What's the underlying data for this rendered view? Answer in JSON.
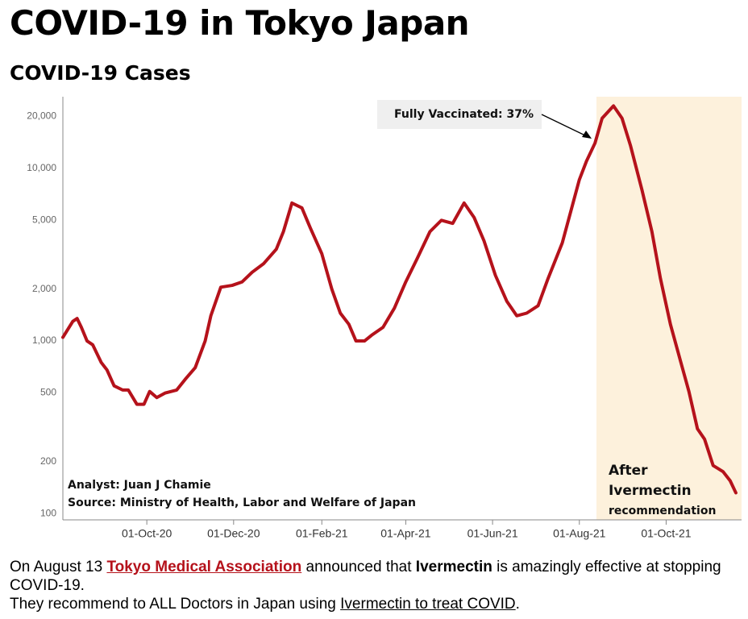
{
  "header": {
    "title": "COVID-19 in Tokyo Japan"
  },
  "chart_data": {
    "type": "line",
    "title": "COVID-19 Cases",
    "color": "#b5121b",
    "log_scale": true,
    "grid": false,
    "x": [
      "2020-08-03",
      "2020-08-10",
      "2020-08-13",
      "2020-08-16",
      "2020-08-20",
      "2020-08-24",
      "2020-08-30",
      "2020-09-03",
      "2020-09-08",
      "2020-09-14",
      "2020-09-18",
      "2020-09-24",
      "2020-09-29",
      "2020-10-03",
      "2020-10-08",
      "2020-10-14",
      "2020-10-22",
      "2020-10-28",
      "2020-11-04",
      "2020-11-11",
      "2020-11-15",
      "2020-11-22",
      "2020-11-30",
      "2020-12-07",
      "2020-12-14",
      "2020-12-22",
      "2020-12-31",
      "2021-01-05",
      "2021-01-11",
      "2021-01-18",
      "2021-01-24",
      "2021-02-01",
      "2021-02-08",
      "2021-02-14",
      "2021-02-20",
      "2021-02-25",
      "2021-03-03",
      "2021-03-08",
      "2021-03-16",
      "2021-03-24",
      "2021-04-01",
      "2021-04-09",
      "2021-04-18",
      "2021-04-26",
      "2021-05-04",
      "2021-05-12",
      "2021-05-19",
      "2021-05-26",
      "2021-06-03",
      "2021-06-11",
      "2021-06-18",
      "2021-06-25",
      "2021-07-03",
      "2021-07-10",
      "2021-07-20",
      "2021-08-01",
      "2021-08-06",
      "2021-08-12",
      "2021-08-17",
      "2021-08-25",
      "2021-08-31",
      "2021-09-06",
      "2021-09-14",
      "2021-09-21",
      "2021-09-27",
      "2021-10-04",
      "2021-10-11",
      "2021-10-17",
      "2021-10-23",
      "2021-10-28",
      "2021-11-03",
      "2021-11-10",
      "2021-11-15",
      "2021-11-19"
    ],
    "values": [
      1050,
      1300,
      1350,
      1200,
      1000,
      950,
      750,
      680,
      550,
      520,
      520,
      430,
      430,
      510,
      470,
      500,
      520,
      600,
      700,
      1000,
      1400,
      2050,
      2100,
      2200,
      2500,
      2800,
      3400,
      4300,
      6300,
      5900,
      4500,
      3200,
      2000,
      1450,
      1250,
      1000,
      1000,
      1080,
      1200,
      1550,
      2200,
      3000,
      4300,
      5000,
      4800,
      6300,
      5200,
      3800,
      2400,
      1700,
      1400,
      1450,
      1600,
      2300,
      3700,
      8600,
      11000,
      14000,
      19500,
      23000,
      19500,
      13500,
      7500,
      4300,
      2300,
      1250,
      770,
      510,
      310,
      270,
      190,
      175,
      155,
      132
    ],
    "xlim": [
      "2020-08-03",
      "2021-11-23"
    ],
    "xticks": [
      {
        "value": "2020-10-01",
        "label": "01-Oct-20"
      },
      {
        "value": "2020-12-01",
        "label": "01-Dec-20"
      },
      {
        "value": "2021-02-01",
        "label": "01-Feb-21"
      },
      {
        "value": "2021-04-01",
        "label": "01-Apr-21"
      },
      {
        "value": "2021-06-01",
        "label": "01-Jun-21"
      },
      {
        "value": "2021-08-01",
        "label": "01-Aug-21"
      },
      {
        "value": "2021-10-01",
        "label": "01-Oct-21"
      }
    ],
    "ylim": [
      92,
      26000
    ],
    "yticks": [
      100,
      200,
      500,
      {
        "value": 1000,
        "label": "1,000"
      },
      {
        "value": 2000,
        "label": "2,000"
      },
      {
        "value": 5000,
        "label": "5,000"
      },
      {
        "value": 10000,
        "label": "10,000"
      },
      {
        "value": 20000,
        "label": "20,000"
      }
    ],
    "highlight": {
      "from": "2021-08-13",
      "color": "#fdf1dc",
      "label": [
        "After",
        "Ivermectin",
        "recommendation"
      ]
    },
    "callout": "Fully Vaccinated: 37%",
    "annotations": [
      "Analyst: Juan J Chamie",
      "Source: Ministry of Health, Labor and Welfare of Japan"
    ]
  },
  "footer": {
    "line1": [
      "On August 13",
      "Tokyo Medical Association",
      "announced that",
      "Ivermectin",
      "is amazingly effective at stopping COVID-19."
    ],
    "line2": [
      "They recommend to ALL Doctors in Japan using",
      "Ivermectin to treat COVID",
      "."
    ]
  }
}
